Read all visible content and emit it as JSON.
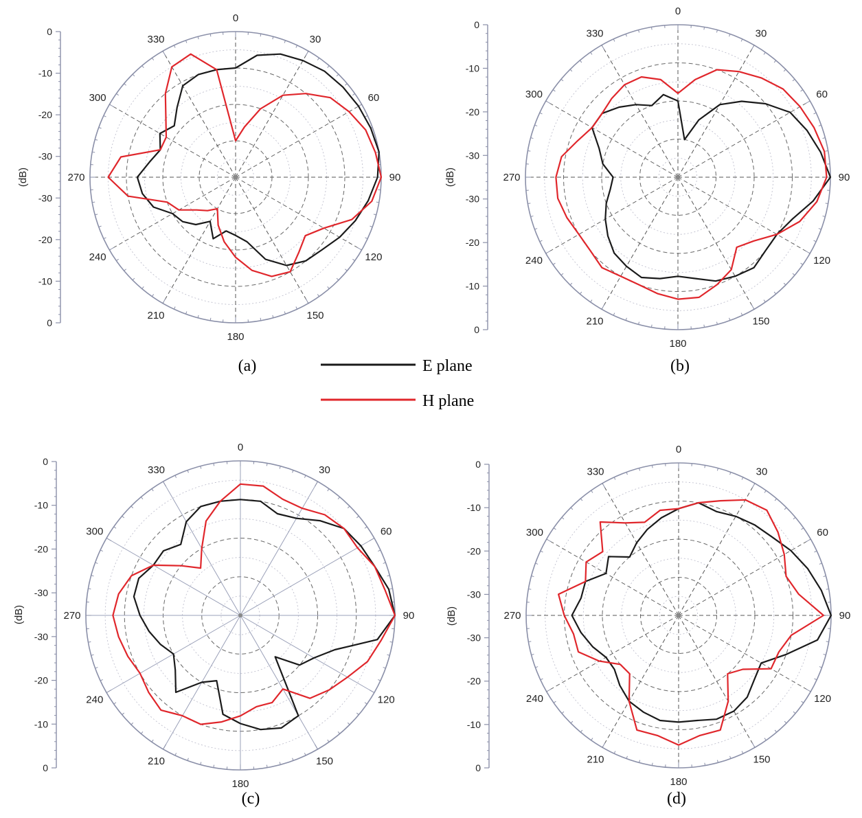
{
  "legend": {
    "items": [
      {
        "label": "E plane",
        "color": "#1a1a1a"
      },
      {
        "label": "H plane",
        "color": "#e0262b"
      }
    ]
  },
  "chart_data": [
    {
      "type": "polar",
      "panel_label": "(a)",
      "ylabel": "(dB)",
      "r_ticks": [
        "0",
        "-10",
        "-20",
        "-30",
        "-30",
        "-20",
        "-10",
        "0"
      ],
      "rlim": [
        -40,
        0
      ],
      "angle_labels": [
        "0",
        "30",
        "60",
        "90",
        "120",
        "150",
        "180",
        "210",
        "240",
        "270",
        "300",
        "330"
      ],
      "grid_style": "dashed",
      "series": [
        {
          "name": "E plane",
          "theta": [
            0,
            10,
            20,
            30,
            40,
            50,
            60,
            70,
            80,
            90,
            100,
            110,
            120,
            130,
            140,
            150,
            160,
            170,
            180,
            190,
            200,
            210,
            220,
            230,
            240,
            250,
            260,
            270,
            280,
            290,
            300,
            310,
            320,
            330,
            340,
            350
          ],
          "r": [
            -10,
            -6,
            -4,
            -3,
            -2,
            -1.5,
            -1,
            -0.5,
            0,
            -1,
            -3,
            -5,
            -7,
            -9,
            -10,
            -12,
            -16,
            -22,
            -24,
            -25,
            -22,
            -26,
            -23,
            -21,
            -20,
            -16,
            -14,
            -13,
            -16,
            -18,
            -16,
            -18,
            -15,
            -11,
            -10,
            -10
          ]
        },
        {
          "name": "H plane",
          "theta": [
            0,
            10,
            20,
            30,
            40,
            50,
            60,
            70,
            80,
            90,
            100,
            110,
            120,
            130,
            140,
            150,
            160,
            170,
            180,
            190,
            200,
            210,
            220,
            230,
            240,
            250,
            260,
            270,
            280,
            290,
            300,
            310,
            320,
            330,
            340,
            350
          ],
          "r": [
            -30,
            -26,
            -20,
            -14,
            -10,
            -6,
            -4,
            -2,
            -1,
            0,
            -2,
            -6,
            -12,
            -15,
            -13,
            -10,
            -11,
            -14,
            -18,
            -22,
            -26,
            -30,
            -28,
            -26,
            -22,
            -20,
            -10,
            -5,
            -8,
            -18,
            -18,
            -15,
            -10,
            -5,
            -4,
            -10
          ]
        }
      ]
    },
    {
      "type": "polar",
      "panel_label": "(b)",
      "ylabel": "(dB)",
      "r_ticks": [
        "0",
        "-10",
        "-20",
        "-30",
        "-30",
        "-20",
        "-10",
        "0"
      ],
      "rlim": [
        -40,
        0
      ],
      "angle_labels": [
        "0",
        "30",
        "60",
        "90",
        "120",
        "150",
        "180",
        "210",
        "240",
        "270",
        "300",
        "330"
      ],
      "grid_style": "dashed",
      "series": [
        {
          "name": "E plane",
          "theta": [
            0,
            10,
            20,
            30,
            40,
            50,
            60,
            70,
            80,
            90,
            100,
            110,
            120,
            130,
            140,
            150,
            160,
            170,
            180,
            190,
            200,
            210,
            220,
            230,
            240,
            250,
            260,
            270,
            280,
            290,
            300,
            310,
            320,
            330,
            340,
            350
          ],
          "r": [
            -20,
            -30,
            -24,
            -18,
            -14,
            -10,
            -6,
            -4,
            -2,
            0,
            -4,
            -8,
            -10,
            -10,
            -9,
            -10,
            -11,
            -13,
            -14,
            -13,
            -12,
            -13,
            -14,
            -16,
            -18,
            -20,
            -22,
            -23,
            -20,
            -18,
            -14,
            -14,
            -16,
            -18,
            -20,
            -18
          ]
        },
        {
          "name": "H plane",
          "theta": [
            0,
            10,
            20,
            30,
            40,
            50,
            60,
            70,
            80,
            90,
            100,
            110,
            120,
            130,
            140,
            150,
            160,
            170,
            180,
            190,
            200,
            210,
            220,
            230,
            240,
            250,
            260,
            270,
            280,
            290,
            300,
            310,
            320,
            330,
            340,
            350
          ],
          "r": [
            -18,
            -14,
            -10,
            -8,
            -6,
            -4,
            -3,
            -2,
            -1,
            -1,
            -3,
            -6,
            -10,
            -14,
            -16,
            -12,
            -10,
            -8,
            -8,
            -9,
            -10,
            -10,
            -9,
            -10,
            -10,
            -9,
            -8,
            -8,
            -9,
            -12,
            -14,
            -14,
            -13,
            -12,
            -12,
            -14
          ]
        }
      ]
    },
    {
      "type": "polar",
      "panel_label": "(c)",
      "ylabel": "(dB)",
      "r_ticks": [
        "0",
        "-10",
        "-20",
        "-30",
        "-30",
        "-20",
        "-10",
        "0"
      ],
      "rlim": [
        -40,
        0
      ],
      "angle_labels": [
        "0",
        "30",
        "60",
        "90",
        "120",
        "150",
        "180",
        "210",
        "240",
        "270",
        "300",
        "330"
      ],
      "grid_style": "solid",
      "series": [
        {
          "name": "E plane",
          "theta": [
            0,
            10,
            20,
            30,
            40,
            50,
            60,
            70,
            80,
            90,
            100,
            110,
            120,
            130,
            140,
            150,
            160,
            170,
            180,
            190,
            200,
            210,
            220,
            230,
            240,
            250,
            260,
            270,
            280,
            290,
            300,
            310,
            320,
            330,
            340,
            350
          ],
          "r": [
            -10,
            -10,
            -12,
            -11,
            -8,
            -5,
            -4,
            -3,
            -1,
            0,
            -4,
            -14,
            -18,
            -20,
            -26,
            -10,
            -9,
            -10,
            -12,
            -14,
            -22,
            -20,
            -14,
            -18,
            -20,
            -18,
            -16,
            -14,
            -12,
            -12,
            -14,
            -14,
            -16,
            -12,
            -10,
            -10
          ]
        },
        {
          "name": "H plane",
          "theta": [
            0,
            10,
            20,
            30,
            40,
            50,
            60,
            70,
            80,
            90,
            100,
            110,
            120,
            130,
            140,
            150,
            160,
            170,
            180,
            190,
            200,
            210,
            220,
            230,
            240,
            250,
            260,
            270,
            280,
            290,
            300,
            310,
            320,
            330,
            340,
            350
          ],
          "r": [
            -6,
            -6,
            -8,
            -8,
            -6,
            -5,
            -5,
            -3,
            -2,
            0,
            -3,
            -5,
            -8,
            -10,
            -12,
            -18,
            -16,
            -16,
            -14,
            -12,
            -10,
            -10,
            -8,
            -9,
            -10,
            -9,
            -8,
            -7,
            -8,
            -10,
            -14,
            -20,
            -24,
            -20,
            -14,
            -10
          ]
        }
      ]
    },
    {
      "type": "polar",
      "panel_label": "(d)",
      "ylabel": "(dB)",
      "r_ticks": [
        "0",
        "-10",
        "-20",
        "-30",
        "-30",
        "-20",
        "-10",
        "0"
      ],
      "rlim": [
        -40,
        0
      ],
      "angle_labels": [
        "0",
        "30",
        "60",
        "90",
        "120",
        "150",
        "180",
        "210",
        "240",
        "270",
        "300",
        "330"
      ],
      "grid_style": "dashed",
      "series": [
        {
          "name": "E plane",
          "theta": [
            0,
            10,
            20,
            30,
            40,
            50,
            60,
            70,
            80,
            90,
            100,
            110,
            120,
            130,
            140,
            150,
            160,
            170,
            180,
            190,
            200,
            210,
            220,
            230,
            240,
            250,
            260,
            270,
            280,
            290,
            300,
            310,
            320,
            330,
            340,
            350
          ],
          "r": [
            -12,
            -10,
            -11,
            -10,
            -9,
            -8,
            -6,
            -4,
            -2,
            0,
            -3,
            -10,
            -15,
            -14,
            -12,
            -11,
            -11,
            -12,
            -12,
            -12,
            -13,
            -14,
            -16,
            -18,
            -18,
            -16,
            -14,
            -12,
            -14,
            -14,
            -18,
            -16,
            -20,
            -18,
            -16,
            -14
          ]
        },
        {
          "name": "H plane",
          "theta": [
            0,
            10,
            20,
            30,
            40,
            50,
            60,
            70,
            80,
            90,
            100,
            110,
            120,
            130,
            140,
            150,
            160,
            170,
            180,
            190,
            200,
            210,
            220,
            230,
            240,
            250,
            260,
            270,
            280,
            290,
            300,
            310,
            320,
            330,
            340,
            350
          ],
          "r": [
            -12,
            -10,
            -8,
            -5,
            -4,
            -6,
            -8,
            -10,
            -8,
            -2,
            -10,
            -12,
            -12,
            -18,
            -20,
            -14,
            -8,
            -8,
            -6,
            -8,
            -8,
            -14,
            -20,
            -20,
            -16,
            -12,
            -12,
            -10,
            -8,
            -14,
            -12,
            -14,
            -8,
            -12,
            -14,
            -12
          ]
        }
      ]
    }
  ]
}
